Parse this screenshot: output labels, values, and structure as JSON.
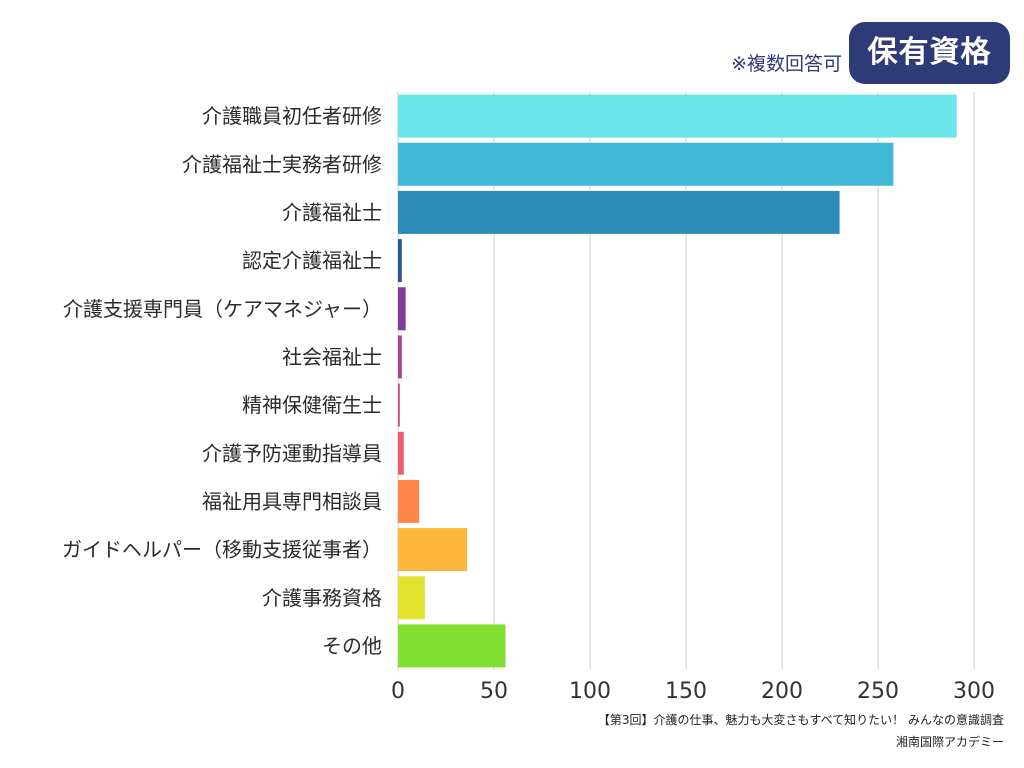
{
  "header": {
    "badge_label": "保有資格",
    "note": "※複数回答可"
  },
  "footer": {
    "source_line1": "【第3回】介護の仕事、魅力も大変さもすべて知りたい！ みんなの意識調査",
    "source_line2": "湘南国際アカデミー"
  },
  "colors": {
    "badge_bg": "#2f3a78",
    "note_text": "#2f3a78",
    "grid": "#cfcfcf",
    "axis_text": "#333333",
    "category_text": "#2b2b2b"
  },
  "chart_data": {
    "type": "bar",
    "orientation": "horizontal",
    "categories": [
      "介護職員初任者研修",
      "介護福祉士実務者研修",
      "介護福祉士",
      "認定介護福祉士",
      "介護支援専門員（ケアマネジャー）",
      "社会福祉士",
      "精神保健衛生士",
      "介護予防運動指導員",
      "福祉用具専門相談員",
      "ガイドヘルパー（移動支援従事者）",
      "介護事務資格",
      "その他"
    ],
    "values": [
      291,
      258,
      230,
      2,
      4,
      2,
      1,
      3,
      11,
      36,
      14,
      56
    ],
    "colors": [
      "#6ce5ea",
      "#41b8d8",
      "#2d8bbb",
      "#2b5699",
      "#7c3d9a",
      "#a84398",
      "#d4567f",
      "#ef5b6d",
      "#ff8649",
      "#ffb63c",
      "#e2e22f",
      "#80df2f"
    ],
    "xlim": [
      0,
      300
    ],
    "xticks": [
      0,
      50,
      100,
      150,
      200,
      250,
      300
    ],
    "grid": true
  }
}
